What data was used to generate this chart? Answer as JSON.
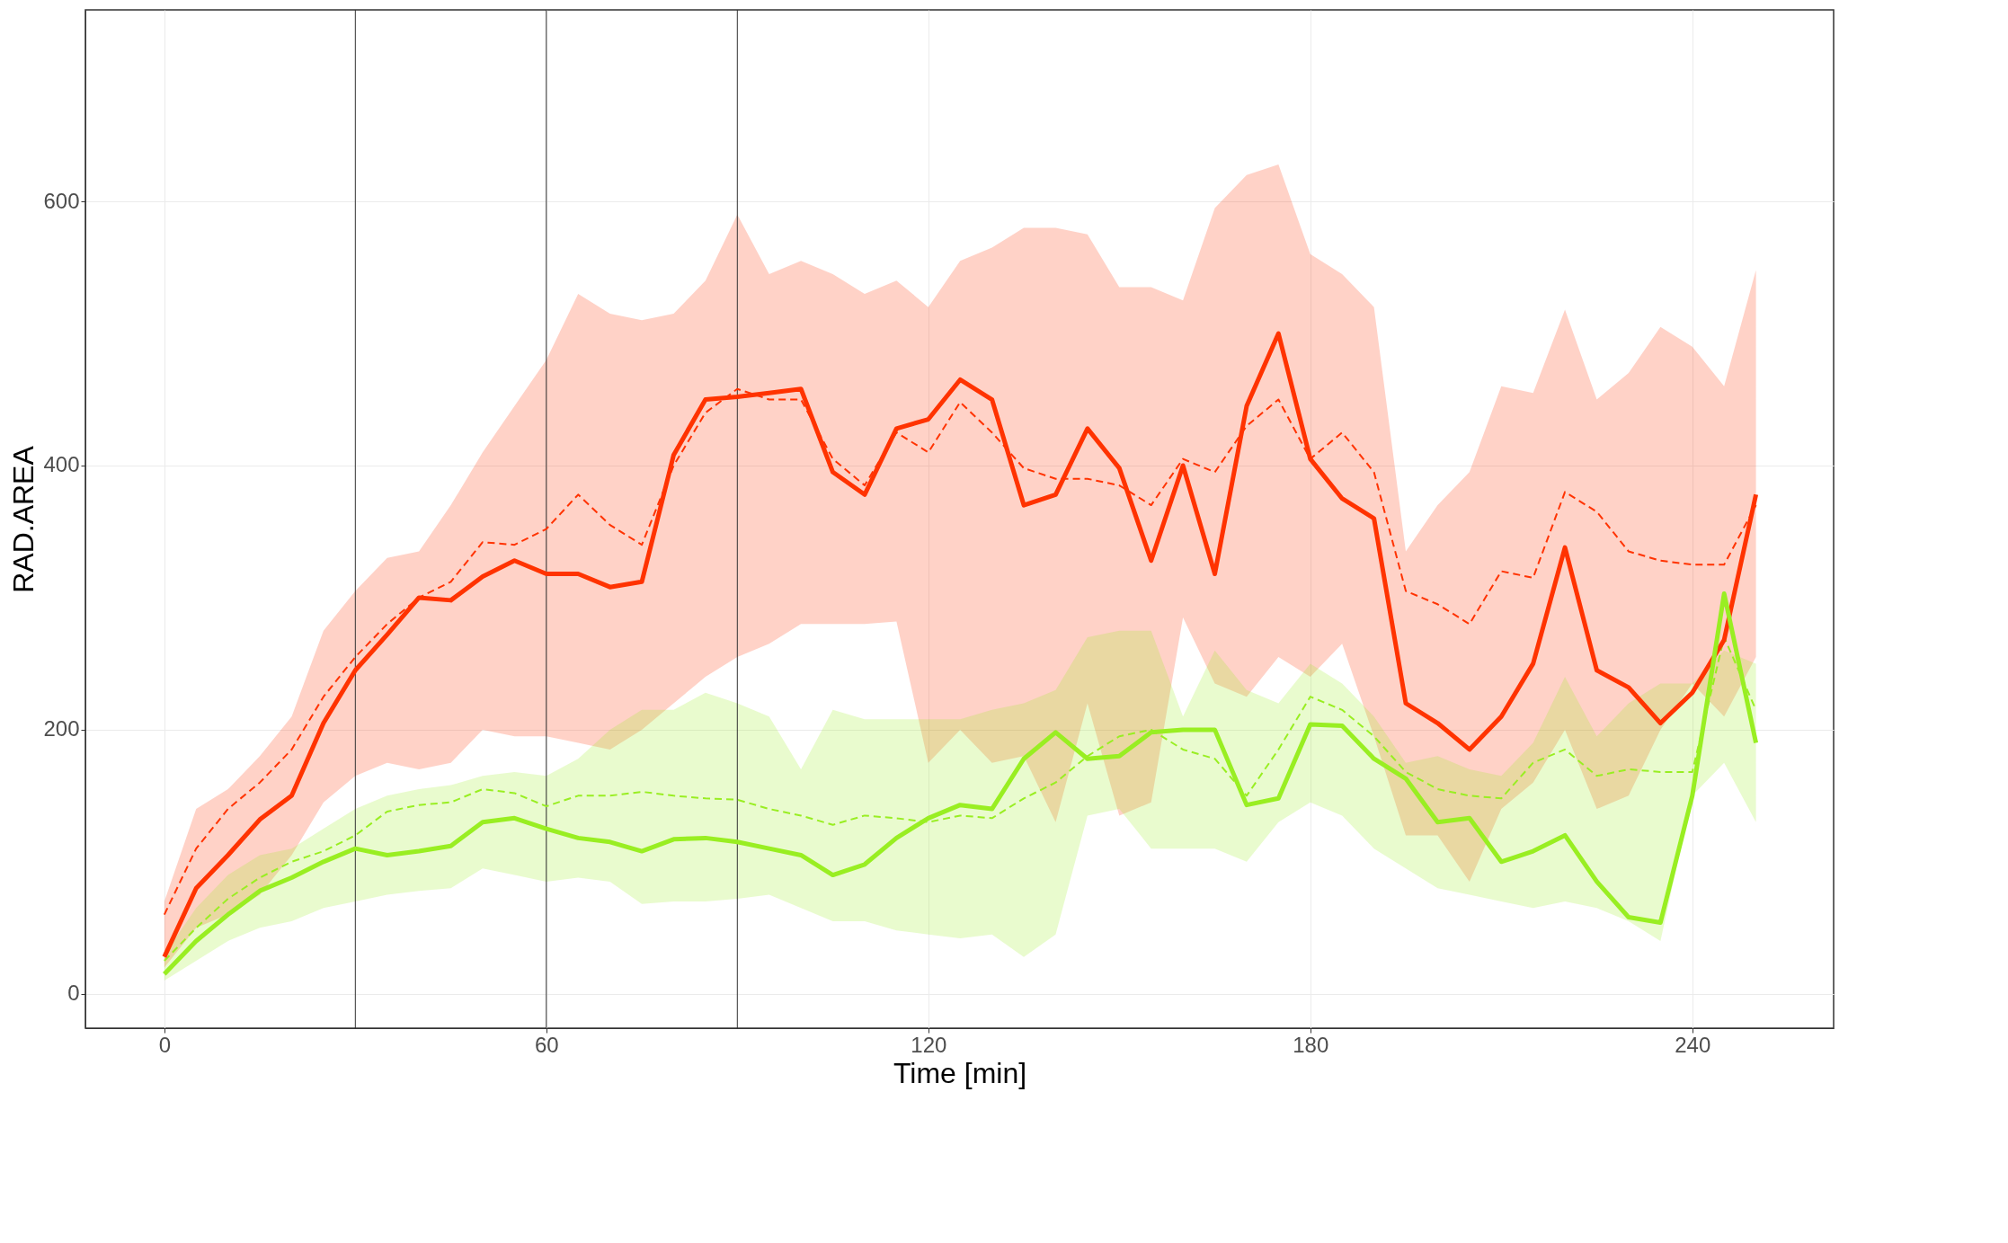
{
  "chart_data": {
    "type": "line",
    "xlabel": "Time [min]",
    "ylabel": "RAD.AREA",
    "x": [
      0,
      5,
      10,
      15,
      20,
      25,
      30,
      35,
      40,
      45,
      50,
      55,
      60,
      65,
      70,
      75,
      80,
      85,
      90,
      95,
      100,
      105,
      110,
      115,
      120,
      125,
      130,
      135,
      140,
      145,
      150,
      155,
      160,
      165,
      170,
      175,
      180,
      185,
      190,
      195,
      200,
      205,
      210,
      215,
      220,
      225,
      230,
      235,
      240,
      245,
      250
    ],
    "xlim": [
      -12.4,
      262.2
    ],
    "xticks": [
      0,
      60,
      120,
      180,
      240
    ],
    "ylim": [
      -26,
      745
    ],
    "yticks": [
      0,
      200,
      400,
      600
    ],
    "grid": true,
    "ref_lines": [
      {
        "axis": "x",
        "value": 30,
        "color": "#333333"
      },
      {
        "axis": "x",
        "value": 60,
        "color": "#333333"
      },
      {
        "axis": "x",
        "value": 90,
        "color": "#333333"
      }
    ],
    "series": [
      {
        "color": "#ff3300",
        "line_style": "dashed",
        "values": [
          60,
          110,
          140,
          160,
          185,
          225,
          255,
          280,
          300,
          312,
          342,
          340,
          352,
          378,
          355,
          340,
          400,
          440,
          458,
          450,
          450,
          405,
          385,
          425,
          410,
          448,
          425,
          398,
          390,
          390,
          385,
          370,
          405,
          395,
          430,
          450,
          405,
          425,
          395,
          305,
          295,
          280,
          320,
          315,
          380,
          365,
          335,
          328,
          325,
          325,
          370
        ],
        "upper": [
          70,
          140,
          155,
          180,
          210,
          275,
          305,
          330,
          335,
          370,
          410,
          445,
          480,
          530,
          515,
          510,
          515,
          540,
          590,
          545,
          555,
          545,
          530,
          540,
          520,
          555,
          565,
          580,
          580,
          575,
          535,
          535,
          525,
          595,
          620,
          628,
          560,
          545,
          520,
          335,
          370,
          395,
          460,
          455,
          518,
          450,
          470,
          505,
          490,
          460,
          548
        ],
        "lower": [
          20,
          50,
          60,
          75,
          105,
          145,
          165,
          175,
          170,
          175,
          200,
          195,
          195,
          190,
          185,
          200,
          220,
          240,
          255,
          265,
          280,
          280,
          280,
          282,
          175,
          200,
          175,
          180,
          130,
          220,
          135,
          145,
          285,
          235,
          225,
          255,
          240,
          265,
          195,
          120,
          120,
          85,
          140,
          160,
          200,
          140,
          150,
          200,
          235,
          210,
          255
        ]
      },
      {
        "color": "#99ee22",
        "line_style": "dashed",
        "values": [
          25,
          50,
          72,
          88,
          100,
          108,
          120,
          138,
          143,
          145,
          155,
          152,
          142,
          150,
          150,
          153,
          150,
          148,
          147,
          140,
          135,
          128,
          135,
          133,
          130,
          135,
          133,
          148,
          160,
          180,
          195,
          200,
          185,
          178,
          150,
          185,
          225,
          215,
          195,
          168,
          155,
          150,
          148,
          175,
          185,
          165,
          170,
          168,
          168,
          270,
          215
        ],
        "upper": [
          30,
          65,
          90,
          105,
          110,
          125,
          140,
          150,
          155,
          158,
          165,
          168,
          165,
          178,
          200,
          215,
          215,
          228,
          220,
          210,
          170,
          215,
          208,
          208,
          208,
          208,
          215,
          220,
          230,
          270,
          275,
          275,
          210,
          260,
          230,
          220,
          250,
          235,
          210,
          175,
          180,
          170,
          165,
          190,
          240,
          195,
          220,
          235,
          235,
          260,
          250
        ],
        "lower": [
          10,
          25,
          40,
          50,
          55,
          65,
          70,
          75,
          78,
          80,
          95,
          90,
          85,
          88,
          85,
          68,
          70,
          70,
          72,
          75,
          65,
          55,
          55,
          48,
          45,
          42,
          45,
          28,
          45,
          135,
          140,
          110,
          110,
          110,
          100,
          130,
          145,
          135,
          110,
          95,
          80,
          75,
          70,
          65,
          70,
          65,
          55,
          40,
          150,
          175,
          130
        ]
      },
      {
        "color": "#ff3300",
        "line_style": "solid",
        "values": [
          28,
          80,
          105,
          132,
          150,
          205,
          245,
          272,
          300,
          298,
          316,
          328,
          318,
          318,
          308,
          312,
          408,
          450,
          452,
          455,
          458,
          395,
          378,
          428,
          435,
          465,
          450,
          370,
          378,
          428,
          398,
          328,
          400,
          318,
          445,
          500,
          405,
          375,
          360,
          220,
          205,
          185,
          210,
          250,
          338,
          245,
          232,
          205,
          228,
          268,
          378
        ]
      },
      {
        "color": "#99ee22",
        "line_style": "solid",
        "values": [
          15,
          40,
          60,
          78,
          88,
          100,
          110,
          105,
          108,
          112,
          130,
          133,
          125,
          118,
          115,
          108,
          117,
          118,
          115,
          110,
          105,
          90,
          98,
          118,
          133,
          143,
          140,
          178,
          198,
          178,
          180,
          198,
          200,
          200,
          143,
          148,
          204,
          203,
          178,
          163,
          130,
          133,
          100,
          108,
          120,
          85,
          58,
          54,
          150,
          303,
          190
        ]
      }
    ]
  }
}
